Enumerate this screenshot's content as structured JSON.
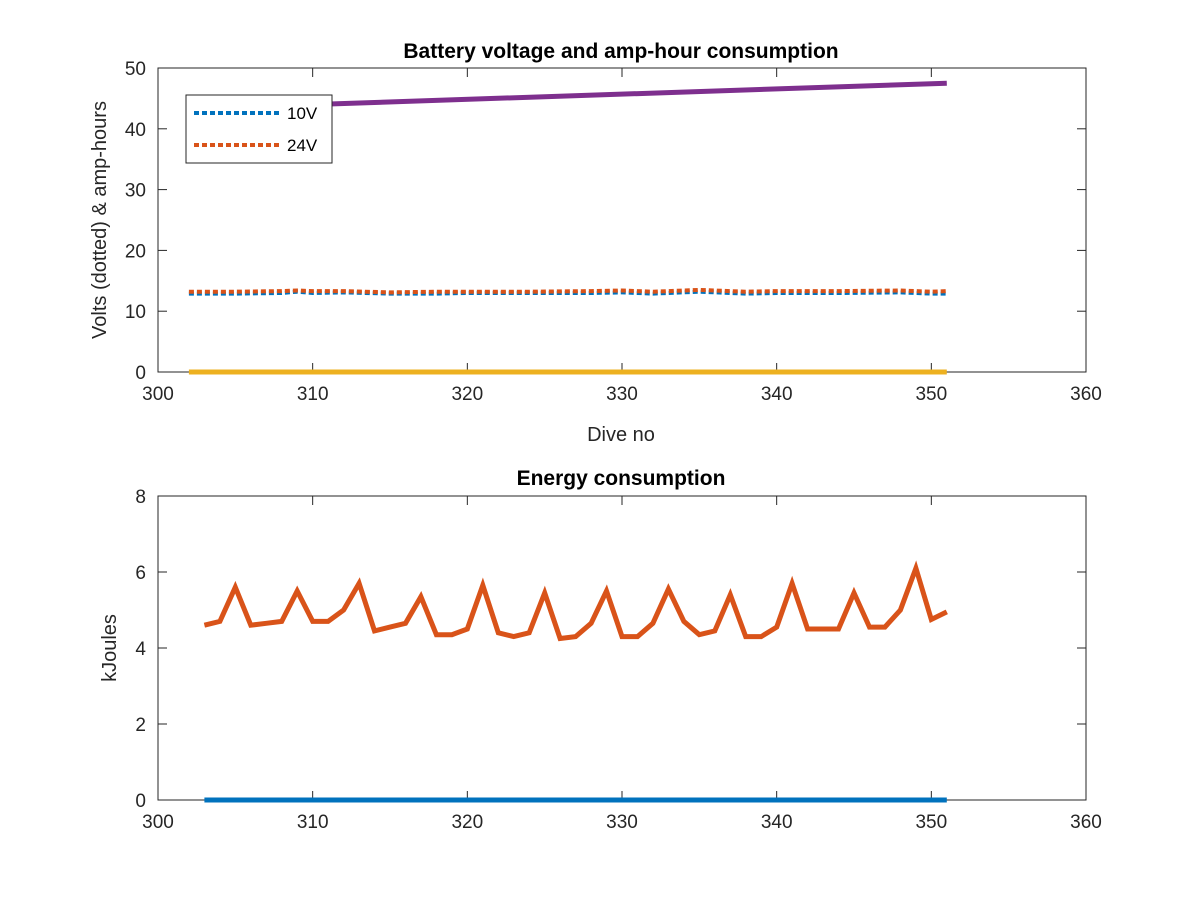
{
  "chart_data": [
    {
      "type": "line",
      "title": "Battery voltage and amp-hour consumption",
      "xlabel": "Dive no",
      "ylabel": "Volts (dotted) & amp-hours",
      "xlim": [
        300,
        360
      ],
      "ylim": [
        0,
        50
      ],
      "xticks": [
        300,
        310,
        320,
        330,
        340,
        350,
        360
      ],
      "yticks": [
        0,
        10,
        20,
        30,
        40,
        50
      ],
      "grid": false,
      "legend_position": "top-left",
      "series": [
        {
          "name": "10V",
          "color": "#0072BD",
          "style": "dotted",
          "x": [
            302,
            305,
            308,
            309,
            310,
            312,
            315,
            318,
            320,
            324,
            328,
            330,
            332,
            335,
            338,
            340,
            344,
            348,
            350,
            351
          ],
          "y": [
            12.9,
            12.9,
            13.0,
            13.2,
            13.0,
            13.1,
            12.9,
            12.9,
            13.0,
            13.0,
            13.0,
            13.1,
            12.9,
            13.2,
            12.9,
            13.0,
            13.0,
            13.1,
            12.9,
            12.9
          ]
        },
        {
          "name": "24V",
          "color": "#D95319",
          "style": "dotted",
          "x": [
            302,
            305,
            308,
            309,
            310,
            312,
            315,
            318,
            320,
            324,
            328,
            330,
            332,
            335,
            338,
            340,
            344,
            348,
            350,
            351
          ],
          "y": [
            13.2,
            13.2,
            13.3,
            13.4,
            13.3,
            13.3,
            13.1,
            13.2,
            13.2,
            13.2,
            13.3,
            13.4,
            13.2,
            13.5,
            13.2,
            13.3,
            13.3,
            13.4,
            13.2,
            13.3
          ]
        },
        {
          "color": "#EDB120",
          "style": "solid",
          "x": [
            302,
            351
          ],
          "y": [
            0,
            0
          ]
        },
        {
          "color": "#7E2F8E",
          "style": "solid",
          "x": [
            302,
            351
          ],
          "y": [
            43.3,
            47.5
          ]
        }
      ]
    },
    {
      "type": "line",
      "title": "Energy consumption",
      "xlabel": "",
      "ylabel": "kJoules",
      "xlim": [
        300,
        360
      ],
      "ylim": [
        0,
        8
      ],
      "xticks": [
        300,
        310,
        320,
        330,
        340,
        350,
        360
      ],
      "yticks": [
        0,
        2,
        4,
        6,
        8
      ],
      "grid": false,
      "series": [
        {
          "color": "#0072BD",
          "style": "solid",
          "x": [
            303,
            351
          ],
          "y": [
            0,
            0
          ]
        },
        {
          "color": "#D95319",
          "style": "solid",
          "x": [
            303,
            304,
            305,
            306,
            307,
            308,
            309,
            310,
            311,
            312,
            313,
            314,
            315,
            316,
            317,
            318,
            319,
            320,
            321,
            322,
            323,
            324,
            325,
            326,
            327,
            328,
            329,
            330,
            331,
            332,
            333,
            334,
            335,
            336,
            337,
            338,
            339,
            340,
            341,
            342,
            343,
            344,
            345,
            346,
            347,
            348,
            349,
            350,
            351
          ],
          "y": [
            4.6,
            4.7,
            5.6,
            4.6,
            4.65,
            4.7,
            5.5,
            4.7,
            4.7,
            5.0,
            5.7,
            4.45,
            4.55,
            4.65,
            5.35,
            4.35,
            4.35,
            4.5,
            5.65,
            4.4,
            4.3,
            4.4,
            5.45,
            4.25,
            4.3,
            4.65,
            5.5,
            4.3,
            4.3,
            4.65,
            5.55,
            4.7,
            4.35,
            4.45,
            5.4,
            4.3,
            4.3,
            4.55,
            5.7,
            4.5,
            4.5,
            4.5,
            5.45,
            4.55,
            4.55,
            5.0,
            6.1,
            4.75,
            4.95
          ]
        }
      ]
    }
  ]
}
